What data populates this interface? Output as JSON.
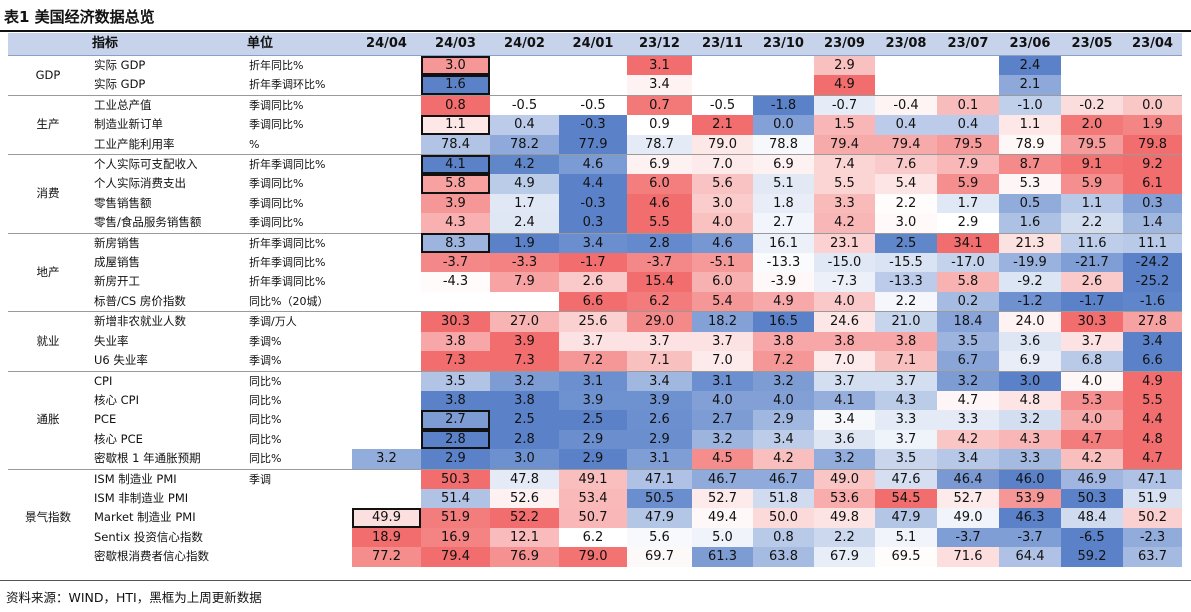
{
  "title": "表1 美国经济数据总览",
  "columns": [
    "指标",
    "单位",
    "24/04",
    "24/03",
    "24/02",
    "24/01",
    "23/12",
    "23/11",
    "23/10",
    "23/09",
    "23/08",
    "23/07",
    "23/06",
    "23/05",
    "23/04"
  ],
  "groups": [
    {
      "name": "GDP",
      "rows": [
        {
          "indicator": "实际 GDP",
          "unit": "折年同比%",
          "values": [
            null,
            "3.0",
            null,
            null,
            "3.1",
            null,
            null,
            "2.9",
            null,
            null,
            "2.4",
            null,
            null
          ],
          "boxed": [
            1
          ]
        },
        {
          "indicator": "实际 GDP",
          "unit": "折年季调环比%",
          "values": [
            null,
            "1.6",
            null,
            null,
            "3.4",
            null,
            null,
            "4.9",
            null,
            null,
            "2.1",
            null,
            null
          ],
          "boxed": [
            1
          ]
        }
      ]
    },
    {
      "name": "生产",
      "rows": [
        {
          "indicator": "工业总产值",
          "unit": "季调同比%",
          "values": [
            null,
            "0.8",
            "-0.5",
            "-0.5",
            "0.7",
            "-0.5",
            "-1.8",
            "-0.7",
            "-0.4",
            "0.1",
            "-1.0",
            "-0.2",
            "0.0"
          ],
          "boxed": []
        },
        {
          "indicator": "制造业新订单",
          "unit": "季调同比%",
          "values": [
            null,
            "1.1",
            "0.4",
            "-0.3",
            "0.9",
            "2.1",
            "0.0",
            "1.5",
            "0.4",
            "0.4",
            "1.1",
            "2.0",
            "1.9"
          ],
          "boxed": [
            1
          ]
        },
        {
          "indicator": "工业产能利用率",
          "unit": "%",
          "values": [
            null,
            "78.4",
            "78.2",
            "77.9",
            "78.7",
            "79.0",
            "78.8",
            "79.4",
            "79.4",
            "79.5",
            "78.9",
            "79.5",
            "79.8"
          ],
          "boxed": []
        }
      ]
    },
    {
      "name": "消费",
      "rows": [
        {
          "indicator": "个人实际可支配收入",
          "unit": "折年季调同比%",
          "values": [
            null,
            "4.1",
            "4.2",
            "4.6",
            "6.9",
            "7.0",
            "6.9",
            "7.4",
            "7.6",
            "7.9",
            "8.7",
            "9.1",
            "9.2"
          ],
          "boxed": [
            1
          ]
        },
        {
          "indicator": "个人实际消费支出",
          "unit": "季调同比%",
          "values": [
            null,
            "5.8",
            "4.9",
            "4.4",
            "6.0",
            "5.6",
            "5.1",
            "5.5",
            "5.4",
            "5.9",
            "5.3",
            "5.9",
            "6.1"
          ],
          "boxed": [
            1
          ]
        },
        {
          "indicator": "零售销售额",
          "unit": "季调同比%",
          "values": [
            null,
            "3.9",
            "1.7",
            "-0.3",
            "4.6",
            "3.0",
            "1.8",
            "3.3",
            "2.2",
            "1.7",
            "0.5",
            "1.1",
            "0.3"
          ],
          "boxed": []
        },
        {
          "indicator": "零售/食品服务销售额",
          "unit": "季调同比%",
          "values": [
            null,
            "4.3",
            "2.4",
            "0.3",
            "5.5",
            "4.0",
            "2.7",
            "4.2",
            "3.0",
            "2.9",
            "1.6",
            "2.2",
            "1.4"
          ],
          "boxed": []
        }
      ]
    },
    {
      "name": "地产",
      "rows": [
        {
          "indicator": "新房销售",
          "unit": "折年季调同比%",
          "values": [
            null,
            "8.3",
            "1.9",
            "3.4",
            "2.8",
            "4.6",
            "16.1",
            "23.1",
            "2.5",
            "34.1",
            "21.3",
            "11.6",
            "11.1"
          ],
          "boxed": [
            1
          ]
        },
        {
          "indicator": "成屋销售",
          "unit": "折年季调同比%",
          "values": [
            null,
            "-3.7",
            "-3.3",
            "-1.7",
            "-3.7",
            "-5.1",
            "-13.3",
            "-15.0",
            "-15.5",
            "-17.0",
            "-19.9",
            "-21.7",
            "-24.2"
          ],
          "boxed": []
        },
        {
          "indicator": "新房开工",
          "unit": "折年季调同比%",
          "values": [
            null,
            "-4.3",
            "7.9",
            "2.6",
            "15.4",
            "6.0",
            "-3.9",
            "-7.3",
            "-13.3",
            "5.8",
            "-9.2",
            "2.6",
            "-25.2"
          ],
          "boxed": []
        },
        {
          "indicator": "标普/CS 房价指数",
          "unit": "同比%（20城）",
          "values": [
            null,
            null,
            null,
            "6.6",
            "6.2",
            "5.4",
            "4.9",
            "4.0",
            "2.2",
            "0.2",
            "-1.2",
            "-1.7",
            "-1.6"
          ],
          "boxed": []
        }
      ]
    },
    {
      "name": "就业",
      "rows": [
        {
          "indicator": "新增非农就业人数",
          "unit": "季调/万人",
          "values": [
            null,
            "30.3",
            "27.0",
            "25.6",
            "29.0",
            "18.2",
            "16.5",
            "24.6",
            "21.0",
            "18.4",
            "24.0",
            "30.3",
            "27.8"
          ],
          "boxed": []
        },
        {
          "indicator": "失业率",
          "unit": "季调%",
          "values": [
            null,
            "3.8",
            "3.9",
            "3.7",
            "3.7",
            "3.7",
            "3.8",
            "3.8",
            "3.8",
            "3.5",
            "3.6",
            "3.7",
            "3.4"
          ],
          "boxed": []
        },
        {
          "indicator": "U6 失业率",
          "unit": "季调%",
          "values": [
            null,
            "7.3",
            "7.3",
            "7.2",
            "7.1",
            "7.0",
            "7.2",
            "7.0",
            "7.1",
            "6.7",
            "6.9",
            "6.8",
            "6.6"
          ],
          "boxed": []
        }
      ]
    },
    {
      "name": "通胀",
      "rows": [
        {
          "indicator": "CPI",
          "unit": "同比%",
          "values": [
            null,
            "3.5",
            "3.2",
            "3.1",
            "3.4",
            "3.1",
            "3.2",
            "3.7",
            "3.7",
            "3.2",
            "3.0",
            "4.0",
            "4.9"
          ],
          "boxed": []
        },
        {
          "indicator": "核心 CPI",
          "unit": "同比%",
          "values": [
            null,
            "3.8",
            "3.8",
            "3.9",
            "3.9",
            "4.0",
            "4.0",
            "4.1",
            "4.3",
            "4.7",
            "4.8",
            "5.3",
            "5.5"
          ],
          "boxed": []
        },
        {
          "indicator": "PCE",
          "unit": "同比%",
          "values": [
            null,
            "2.7",
            "2.5",
            "2.5",
            "2.6",
            "2.7",
            "2.9",
            "3.4",
            "3.3",
            "3.3",
            "3.2",
            "4.0",
            "4.4"
          ],
          "boxed": [
            1
          ]
        },
        {
          "indicator": "核心 PCE",
          "unit": "同比%",
          "values": [
            null,
            "2.8",
            "2.8",
            "2.9",
            "2.9",
            "3.2",
            "3.4",
            "3.6",
            "3.7",
            "4.2",
            "4.3",
            "4.7",
            "4.8"
          ],
          "boxed": [
            1
          ]
        },
        {
          "indicator": "密歇根 1 年通胀预期",
          "unit": "同比%",
          "values": [
            "3.2",
            "2.9",
            "3.0",
            "2.9",
            "3.1",
            "4.5",
            "4.2",
            "3.2",
            "3.5",
            "3.4",
            "3.3",
            "4.2",
            "4.7"
          ],
          "boxed": []
        }
      ]
    },
    {
      "name": "景气指数",
      "rows": [
        {
          "indicator": "ISM 制造业 PMI",
          "unit": "季调",
          "values": [
            null,
            "50.3",
            "47.8",
            "49.1",
            "47.1",
            "46.7",
            "46.7",
            "49.0",
            "47.6",
            "46.4",
            "46.0",
            "46.9",
            "47.1"
          ],
          "boxed": []
        },
        {
          "indicator": "ISM 非制造业 PMI",
          "unit": "",
          "values": [
            null,
            "51.4",
            "52.6",
            "53.4",
            "50.5",
            "52.7",
            "51.8",
            "53.6",
            "54.5",
            "52.7",
            "53.9",
            "50.3",
            "51.9"
          ],
          "boxed": []
        },
        {
          "indicator": "Market 制造业 PMI",
          "unit": "",
          "values": [
            "49.9",
            "51.9",
            "52.2",
            "50.7",
            "47.9",
            "49.4",
            "50.0",
            "49.8",
            "47.9",
            "49.0",
            "46.3",
            "48.4",
            "50.2"
          ],
          "boxed": [
            0
          ]
        },
        {
          "indicator": "Sentix 投资信心指数",
          "unit": "",
          "values": [
            "18.9",
            "16.9",
            "12.1",
            "6.2",
            "5.6",
            "5.0",
            "0.8",
            "2.2",
            "5.1",
            "-3.7",
            "-3.7",
            "-6.5",
            "-2.3"
          ],
          "boxed": []
        },
        {
          "indicator": "密歇根消费者信心指数",
          "unit": "",
          "values": [
            "77.2",
            "79.4",
            "76.9",
            "79.0",
            "69.7",
            "61.3",
            "63.8",
            "67.9",
            "69.5",
            "71.6",
            "64.4",
            "59.2",
            "63.7"
          ],
          "boxed": []
        }
      ]
    }
  ],
  "source": "资料来源：WIND，HTI，黑框为上周更新数据",
  "colors": {
    "header": "#c7d3ea",
    "strong_red": "#f26d6d",
    "strong_blue": "#5b82c9",
    "neutral": "#ffffff"
  }
}
